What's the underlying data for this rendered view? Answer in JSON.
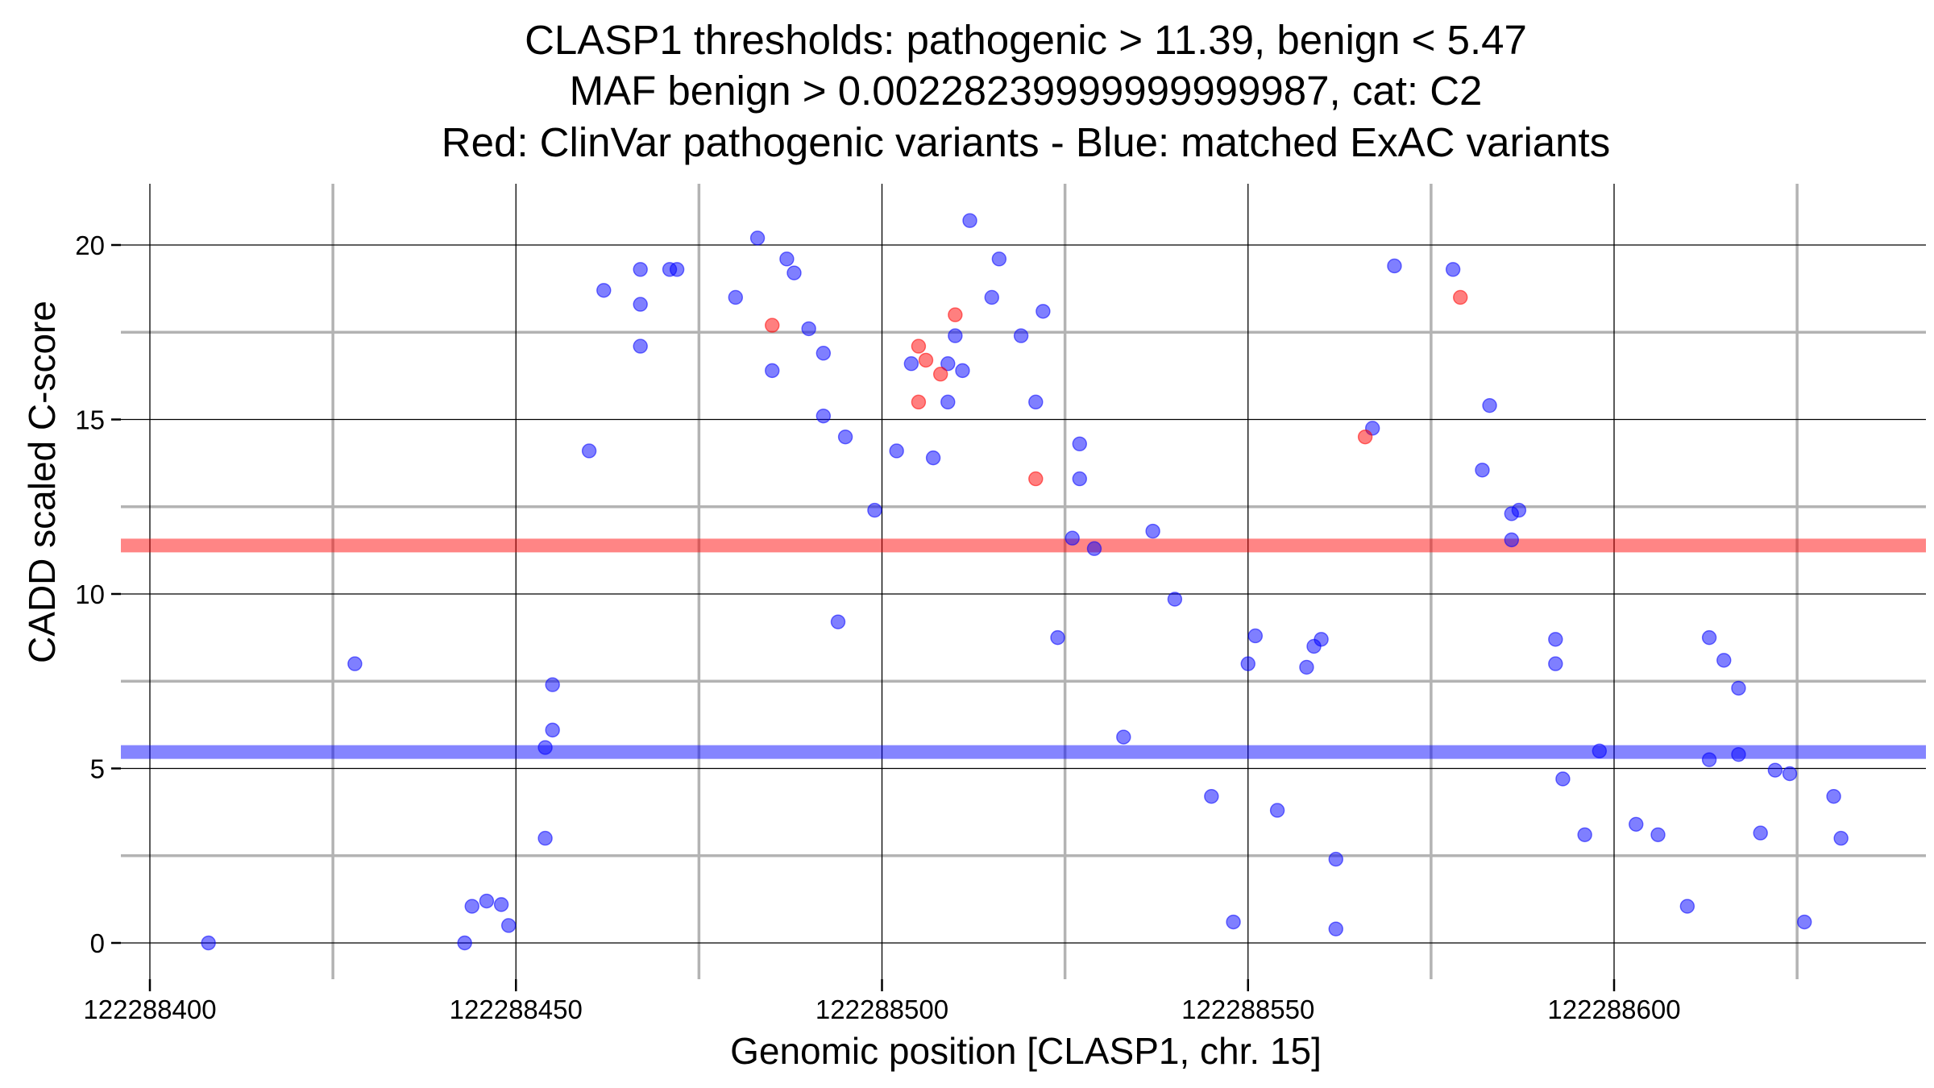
{
  "chart_data": {
    "type": "scatter",
    "title": [
      "CLASP1 thresholds: pathogenic > 11.39, benign < 5.47",
      "MAF benign > 0.00228239999999999987, cat: C2",
      "Red: ClinVar pathogenic variants - Blue: matched ExAC variants"
    ],
    "xlabel": "Genomic position [CLASP1, chr. 15]",
    "ylabel": "CADD scaled C-score",
    "xlim": [
      122288399,
      122288628
    ],
    "ylim": [
      -1.0,
      21.8
    ],
    "x_ticks": [
      {
        "value": 122288400,
        "label": "122288400"
      },
      {
        "value": 122288450,
        "label": "122288450"
      },
      {
        "value": 122288500,
        "label": "122288500"
      },
      {
        "value": 122288550,
        "label": "122288550"
      },
      {
        "value": 122288600,
        "label": "122288600"
      }
    ],
    "y_ticks": [
      {
        "value": 0,
        "label": "0"
      },
      {
        "value": 5,
        "label": "5"
      },
      {
        "value": 10,
        "label": "10"
      },
      {
        "value": 15,
        "label": "15"
      },
      {
        "value": 20,
        "label": "20"
      }
    ],
    "x_minor_grid": [
      122288425,
      122288475,
      122288525,
      122288575,
      122288625
    ],
    "y_minor_grid": [
      2.5,
      7.5,
      12.5,
      17.5
    ],
    "thresholds": [
      {
        "value": 11.39,
        "color": "#ff0000"
      },
      {
        "value": 5.47,
        "color": "#0000ff"
      }
    ],
    "series": [
      {
        "color": "#0000ff",
        "points": [
          [
            122288408,
            0.0
          ],
          [
            122288428,
            8.0
          ],
          [
            122288443,
            0.0
          ],
          [
            122288444,
            1.05
          ],
          [
            122288446,
            1.2
          ],
          [
            122288448,
            1.1
          ],
          [
            122288449,
            0.5
          ],
          [
            122288454,
            5.6
          ],
          [
            122288454,
            3.0
          ],
          [
            122288455,
            6.1
          ],
          [
            122288455,
            7.4
          ],
          [
            122288460,
            14.1
          ],
          [
            122288462,
            18.7
          ],
          [
            122288467,
            19.3
          ],
          [
            122288467,
            18.3
          ],
          [
            122288467,
            17.1
          ],
          [
            122288471,
            19.3
          ],
          [
            122288472,
            19.3
          ],
          [
            122288480,
            18.5
          ],
          [
            122288483,
            20.2
          ],
          [
            122288485,
            16.4
          ],
          [
            122288487,
            19.6
          ],
          [
            122288488,
            19.2
          ],
          [
            122288490,
            17.6
          ],
          [
            122288492,
            16.9
          ],
          [
            122288492,
            15.1
          ],
          [
            122288494,
            9.2
          ],
          [
            122288495,
            14.5
          ],
          [
            122288499,
            12.4
          ],
          [
            122288502,
            14.1
          ],
          [
            122288504,
            16.6
          ],
          [
            122288507,
            13.9
          ],
          [
            122288509,
            16.6
          ],
          [
            122288509,
            15.5
          ],
          [
            122288510,
            17.4
          ],
          [
            122288511,
            16.4
          ],
          [
            122288512,
            20.7
          ],
          [
            122288515,
            18.5
          ],
          [
            122288516,
            19.6
          ],
          [
            122288519,
            17.4
          ],
          [
            122288521,
            15.5
          ],
          [
            122288522,
            18.1
          ],
          [
            122288524,
            8.75
          ],
          [
            122288526,
            11.6
          ],
          [
            122288527,
            14.3
          ],
          [
            122288527,
            13.3
          ],
          [
            122288529,
            11.3
          ],
          [
            122288533,
            5.9
          ],
          [
            122288537,
            11.8
          ],
          [
            122288540,
            9.85
          ],
          [
            122288545,
            4.2
          ],
          [
            122288548,
            0.6
          ],
          [
            122288550,
            8.0
          ],
          [
            122288551,
            8.8
          ],
          [
            122288554,
            3.8
          ],
          [
            122288558,
            7.9
          ],
          [
            122288559,
            8.5
          ],
          [
            122288560,
            8.7
          ],
          [
            122288562,
            2.4
          ],
          [
            122288562,
            0.4
          ],
          [
            122288567,
            14.75
          ],
          [
            122288570,
            19.4
          ],
          [
            122288578,
            19.3
          ],
          [
            122288582,
            13.55
          ],
          [
            122288583,
            15.4
          ],
          [
            122288586,
            12.3
          ],
          [
            122288586,
            11.55
          ],
          [
            122288587,
            12.4
          ],
          [
            122288592,
            8.7
          ],
          [
            122288592,
            8.0
          ],
          [
            122288593,
            4.7
          ],
          [
            122288596,
            3.1
          ],
          [
            122288598,
            5.5
          ],
          [
            122288603,
            3.4
          ],
          [
            122288606,
            3.1
          ],
          [
            122288610,
            1.05
          ],
          [
            122288613,
            8.75
          ],
          [
            122288613,
            5.25
          ],
          [
            122288615,
            8.1
          ],
          [
            122288617,
            7.3
          ],
          [
            122288617,
            5.4
          ],
          [
            122288620,
            3.15
          ],
          [
            122288622,
            4.95
          ],
          [
            122288624,
            4.85
          ],
          [
            122288626,
            0.6
          ],
          [
            122288630,
            4.2
          ],
          [
            122288631,
            3.0
          ]
        ]
      },
      {
        "color": "#ff0000",
        "points": [
          [
            122288485,
            17.7
          ],
          [
            122288505,
            17.1
          ],
          [
            122288505,
            15.5
          ],
          [
            122288506,
            16.7
          ],
          [
            122288508,
            16.3
          ],
          [
            122288510,
            18.0
          ],
          [
            122288521,
            13.3
          ],
          [
            122288566,
            14.5
          ],
          [
            122288579,
            18.5
          ]
        ]
      }
    ]
  }
}
